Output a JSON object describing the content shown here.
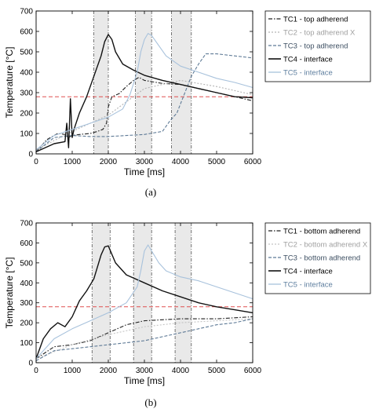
{
  "chart_data": [
    {
      "panel": "(a)",
      "type": "line",
      "xlabel": "Time [ms]",
      "ylabel": "Temperature [°C]",
      "xlim": [
        0,
        6000
      ],
      "ylim": [
        0,
        700
      ],
      "xticks": [
        0,
        1000,
        2000,
        3000,
        4000,
        5000,
        6000
      ],
      "yticks": [
        0,
        100,
        200,
        300,
        400,
        500,
        600,
        700
      ],
      "grid": false,
      "legend_position": "outside-right",
      "reference_line": {
        "y": 280,
        "color": "#e05050"
      },
      "shaded_bands": [
        [
          1600,
          2000
        ],
        [
          2750,
          3200
        ],
        [
          3750,
          4300
        ]
      ],
      "series": [
        {
          "name": "TC1 - top adherend",
          "color": "#222222",
          "dash": "5,2,1.5,2",
          "x": [
            0,
            300,
            600,
            800,
            900,
            1000,
            1200,
            1500,
            1700,
            1850,
            1950,
            2000,
            2100,
            2300,
            2500,
            2700,
            2850,
            3000,
            3500,
            4000,
            4500,
            5000,
            5500,
            6000
          ],
          "y": [
            10,
            70,
            100,
            95,
            80,
            90,
            95,
            100,
            110,
            120,
            150,
            230,
            280,
            295,
            330,
            360,
            375,
            360,
            345,
            340,
            320,
            300,
            280,
            260
          ]
        },
        {
          "name": "TC2 - top adherend X",
          "color": "#b4b4b4",
          "dash": "2,2",
          "x": [
            0,
            1000,
            2000,
            3000,
            4000,
            5000,
            6000
          ],
          "y": [
            20,
            110,
            190,
            320,
            360,
            330,
            290
          ]
        },
        {
          "name": "TC3 - top adherend",
          "color": "#5e7a96",
          "dash": "4,2",
          "x": [
            0,
            500,
            1000,
            1500,
            2000,
            2500,
            3000,
            3500,
            3700,
            3900,
            4100,
            4300,
            4500,
            4700,
            5000,
            5500,
            6000
          ],
          "y": [
            10,
            80,
            90,
            85,
            85,
            90,
            95,
            110,
            160,
            200,
            290,
            380,
            440,
            490,
            490,
            480,
            470
          ]
        },
        {
          "name": "TC4 - interface",
          "color": "#111111",
          "dash": "",
          "x": [
            0,
            500,
            800,
            850,
            900,
            950,
            1000,
            1050,
            1200,
            1400,
            1600,
            1800,
            1900,
            2000,
            2100,
            2200,
            2400,
            2700,
            3000,
            3500,
            4000,
            4500,
            5000,
            5500,
            6000
          ],
          "y": [
            10,
            50,
            60,
            150,
            30,
            270,
            80,
            120,
            200,
            280,
            380,
            480,
            550,
            585,
            560,
            500,
            440,
            410,
            385,
            360,
            340,
            320,
            300,
            280,
            275
          ]
        },
        {
          "name": "TC5 - interface",
          "color": "#a8c2dc",
          "dash": "",
          "x": [
            0,
            500,
            1000,
            1500,
            2000,
            2400,
            2600,
            2800,
            2900,
            3000,
            3100,
            3200,
            3400,
            3600,
            4000,
            4500,
            5000,
            5500,
            6000
          ],
          "y": [
            20,
            90,
            120,
            150,
            180,
            220,
            290,
            400,
            500,
            560,
            590,
            580,
            530,
            480,
            430,
            400,
            370,
            350,
            325
          ]
        }
      ]
    },
    {
      "panel": "(b)",
      "type": "line",
      "xlabel": "Time [ms]",
      "ylabel": "Temperature [°C]",
      "xlim": [
        0,
        6000
      ],
      "ylim": [
        0,
        700
      ],
      "xticks": [
        0,
        1000,
        2000,
        3000,
        4000,
        5000,
        6000
      ],
      "yticks": [
        0,
        100,
        200,
        300,
        400,
        500,
        600,
        700
      ],
      "grid": false,
      "legend_position": "outside-right",
      "reference_line": {
        "y": 280,
        "color": "#e05050"
      },
      "shaded_bands": [
        [
          1550,
          2050
        ],
        [
          2700,
          3200
        ],
        [
          3850,
          4300
        ]
      ],
      "series": [
        {
          "name": "TC1 - bottom adherend",
          "color": "#222222",
          "dash": "5,2,1.5,2",
          "x": [
            0,
            500,
            1000,
            1500,
            2000,
            2500,
            3000,
            3500,
            4000,
            4500,
            5000,
            5500,
            6000
          ],
          "y": [
            20,
            80,
            90,
            110,
            150,
            190,
            210,
            215,
            220,
            220,
            220,
            225,
            230
          ]
        },
        {
          "name": "TC2 - bottom adherend X",
          "color": "#c4c4c4",
          "dash": "2,2",
          "x": [
            0,
            1000,
            2000,
            3000,
            4000,
            5000,
            6000
          ],
          "y": [
            20,
            90,
            140,
            180,
            200,
            210,
            220
          ]
        },
        {
          "name": "TC3 - bottom adherend",
          "color": "#5e7a96",
          "dash": "4,2",
          "x": [
            0,
            500,
            1000,
            1500,
            2000,
            2500,
            3000,
            3500,
            4000,
            4500,
            5000,
            5500,
            6000
          ],
          "y": [
            10,
            60,
            70,
            80,
            90,
            100,
            110,
            130,
            150,
            170,
            190,
            200,
            220
          ]
        },
        {
          "name": "TC4 - interface",
          "color": "#111111",
          "dash": "",
          "x": [
            0,
            200,
            400,
            600,
            800,
            1000,
            1200,
            1400,
            1600,
            1800,
            1900,
            2000,
            2200,
            2500,
            3000,
            3500,
            4000,
            4500,
            5000,
            5500,
            6000
          ],
          "y": [
            20,
            120,
            170,
            200,
            180,
            230,
            310,
            360,
            420,
            540,
            580,
            585,
            500,
            440,
            400,
            360,
            330,
            300,
            280,
            265,
            250
          ]
        },
        {
          "name": "TC5 - interface",
          "color": "#a8c2dc",
          "dash": "",
          "x": [
            0,
            500,
            1000,
            1500,
            2000,
            2500,
            2800,
            2900,
            3000,
            3100,
            3200,
            3400,
            3600,
            4000,
            4500,
            5000,
            5500,
            6000
          ],
          "y": [
            20,
            120,
            170,
            210,
            250,
            300,
            380,
            460,
            560,
            590,
            560,
            500,
            460,
            430,
            410,
            380,
            350,
            320
          ]
        }
      ]
    }
  ]
}
